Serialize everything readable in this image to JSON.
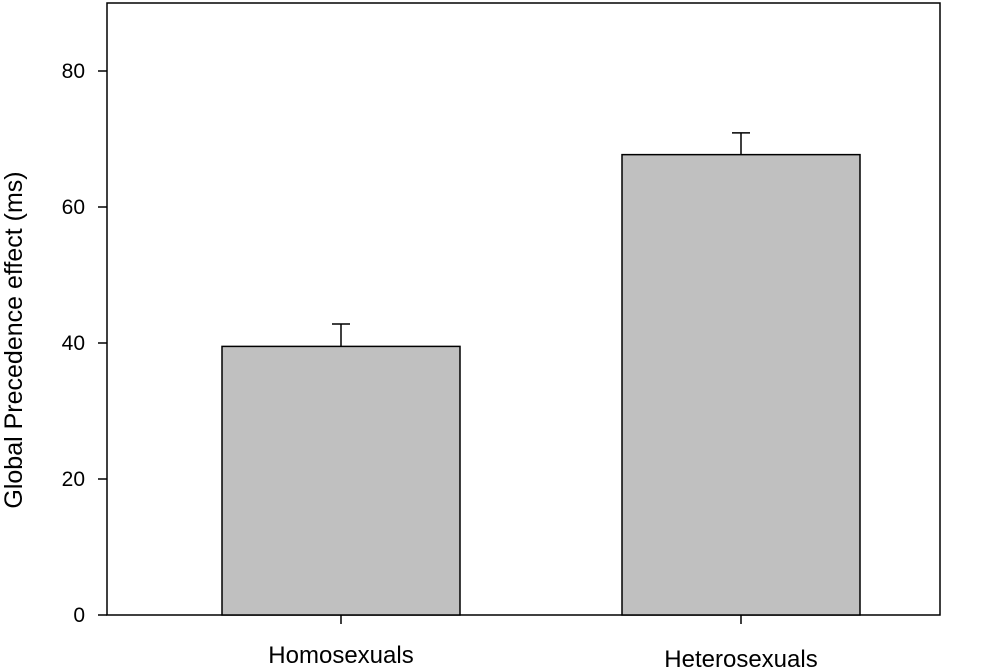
{
  "chart_data": {
    "type": "bar",
    "categories": [
      "Homosexuals",
      "Heterosexuals"
    ],
    "values": [
      39.5,
      67.7
    ],
    "error_plus": [
      3.3,
      3.2
    ],
    "title": "",
    "xlabel": "",
    "ylabel": "Global Precedence effect (ms)",
    "ylim": [
      0,
      90
    ],
    "yticks": [
      0,
      20,
      40,
      60,
      80
    ],
    "grid": false,
    "bar_color": "#c0c0c0",
    "edge_color": "#000000"
  }
}
